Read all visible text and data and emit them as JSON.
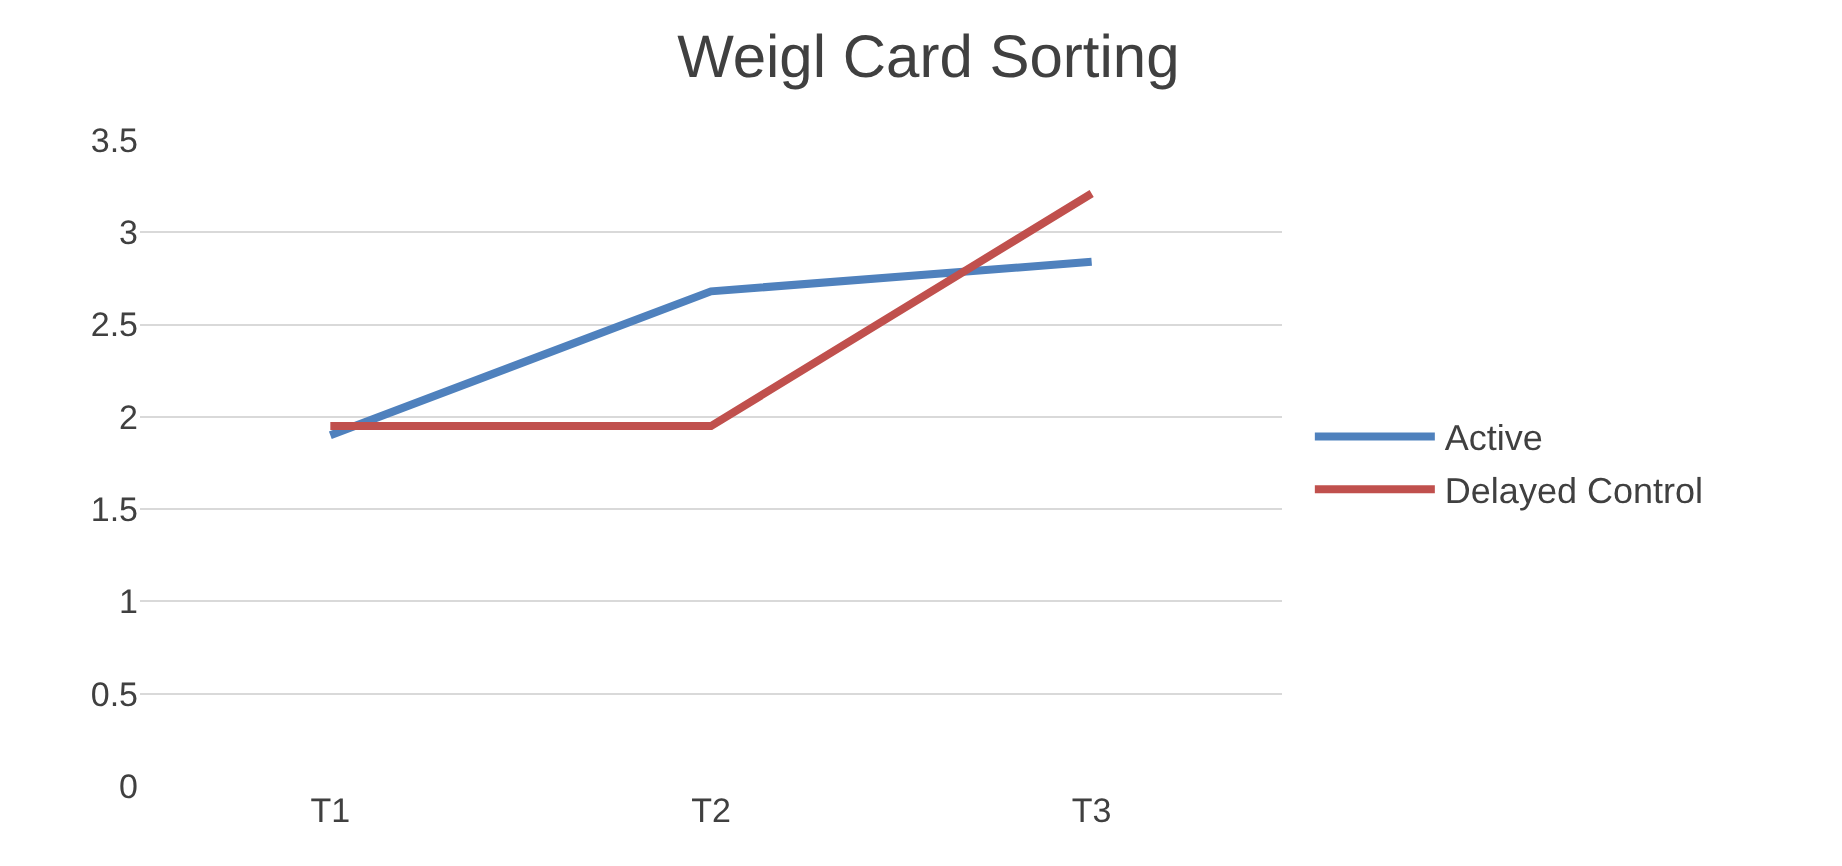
{
  "chart_data": {
    "type": "line",
    "title": "Weigl Card Sorting",
    "categories": [
      "T1",
      "T2",
      "T3"
    ],
    "series": [
      {
        "name": "Active",
        "color": "#4f81bd",
        "values": [
          1.9,
          2.68,
          2.84
        ]
      },
      {
        "name": "Delayed Control",
        "color": "#c0504d",
        "values": [
          1.95,
          1.95,
          3.21
        ]
      }
    ],
    "ylim": [
      0,
      3.5
    ],
    "yticks": [
      0,
      0.5,
      1,
      1.5,
      2,
      2.5,
      3,
      3.5
    ],
    "grid": "y",
    "legend": "right",
    "marker": "none",
    "line_style": "solid"
  }
}
